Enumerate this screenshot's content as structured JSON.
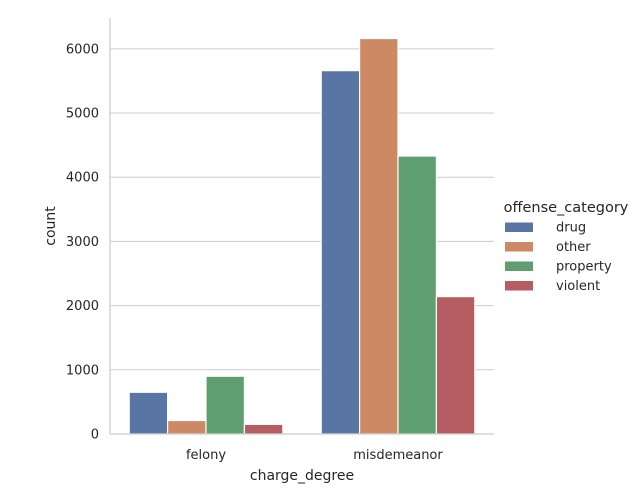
{
  "chart_data": {
    "type": "bar",
    "xlabel": "charge_degree",
    "ylabel": "count",
    "categories": [
      "felony",
      "misdemeanor"
    ],
    "ylim": [
      0,
      6480
    ],
    "yticks": [
      0,
      1000,
      2000,
      3000,
      4000,
      5000,
      6000
    ],
    "grid": "horizontal",
    "legend": {
      "title": "offense_category",
      "placement": "right"
    },
    "series": [
      {
        "name": "drug",
        "color": "#5875a4",
        "values": [
          650,
          5660
        ]
      },
      {
        "name": "other",
        "color": "#cc8963",
        "values": [
          210,
          6160
        ]
      },
      {
        "name": "property",
        "color": "#5f9e6e",
        "values": [
          900,
          4330
        ]
      },
      {
        "name": "violent",
        "color": "#b55d60",
        "values": [
          150,
          2140
        ]
      }
    ]
  }
}
